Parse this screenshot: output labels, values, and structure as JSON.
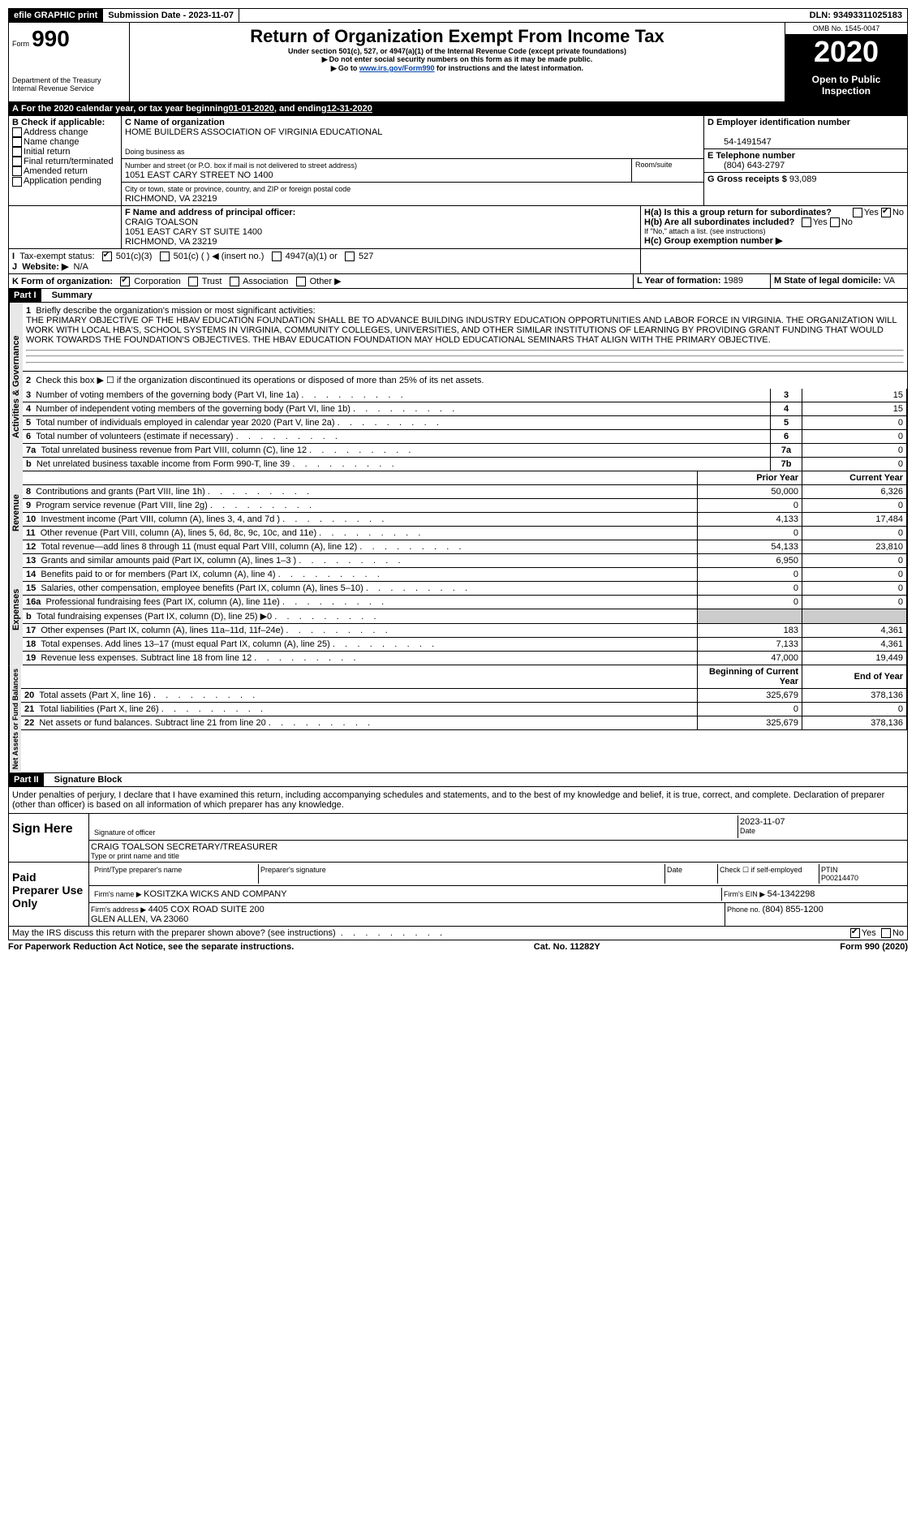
{
  "topbar": {
    "efile": "efile GRAPHIC print",
    "submission_label": "Submission Date - ",
    "submission_date": "2023-11-07",
    "dln_label": "DLN: ",
    "dln": "93493311025183"
  },
  "header": {
    "form_prefix": "Form",
    "form_no": "990",
    "title": "Return of Organization Exempt From Income Tax",
    "subtitle": "Under section 501(c), 527, or 4947(a)(1) of the Internal Revenue Code (except private foundations)",
    "warn1": "Do not enter social security numbers on this form as it may be made public.",
    "warn2_pre": "Go to ",
    "warn2_link": "www.irs.gov/Form990",
    "warn2_post": " for instructions and the latest information.",
    "dept": "Department of the Treasury\nInternal Revenue Service",
    "omb": "OMB No. 1545-0047",
    "year": "2020",
    "open": "Open to Public Inspection"
  },
  "periodA": {
    "text": "For the 2020 calendar year, or tax year beginning ",
    "begin": "01-01-2020",
    "mid": " , and ending ",
    "end": "12-31-2020"
  },
  "boxB": {
    "label": "B Check if applicable:",
    "opts": [
      "Address change",
      "Name change",
      "Initial return",
      "Final return/terminated",
      "Amended return",
      "Application pending"
    ]
  },
  "boxC": {
    "label": "C Name of organization",
    "name": "HOME BUILDERS ASSOCIATION OF VIRGINIA EDUCATIONAL",
    "dba_label": "Doing business as",
    "addr_label": "Number and street (or P.O. box if mail is not delivered to street address)",
    "addr": "1051 EAST CARY STREET NO 1400",
    "room_label": "Room/suite",
    "city_label": "City or town, state or province, country, and ZIP or foreign postal code",
    "city": "RICHMOND, VA  23219"
  },
  "boxD": {
    "label": "D Employer identification number",
    "value": "54-1491547"
  },
  "boxE": {
    "label": "E Telephone number",
    "value": "(804) 643-2797"
  },
  "boxG": {
    "label": "G Gross receipts $ ",
    "value": "93,089"
  },
  "boxF": {
    "label": "F  Name and address of principal officer:",
    "name": "CRAIG TOALSON",
    "addr1": "1051 EAST CARY ST SUITE 1400",
    "addr2": "RICHMOND, VA  23219"
  },
  "boxH": {
    "a_label": "H(a)  Is this a group return for subordinates?",
    "b_label": "H(b)  Are all subordinates included?",
    "b_note": "If \"No,\" attach a list. (see instructions)",
    "c_label": "H(c)  Group exemption number ▶",
    "yes": "Yes",
    "no": "No"
  },
  "boxI": {
    "label": "Tax-exempt status:",
    "opts": [
      "501(c)(3)",
      "501(c) (  ) ◀ (insert no.)",
      "4947(a)(1) or",
      "527"
    ]
  },
  "boxJ": {
    "label": "Website: ▶",
    "value": "N/A"
  },
  "boxK": {
    "label": "K Form of organization:",
    "opts": [
      "Corporation",
      "Trust",
      "Association",
      "Other ▶"
    ]
  },
  "boxL": {
    "label": "L Year of formation: ",
    "value": "1989"
  },
  "boxM": {
    "label": "M State of legal domicile: ",
    "value": "VA"
  },
  "part1": {
    "label": "Part I",
    "title": "Summary",
    "sideA": "Activities & Governance",
    "sideR": "Revenue",
    "sideE": "Expenses",
    "sideN": "Net Assets or Fund Balances",
    "l1_label": "Briefly describe the organization's mission or most significant activities:",
    "l1_text": "THE PRIMARY OBJECTIVE OF THE HBAV EDUCATION FOUNDATION SHALL BE TO ADVANCE BUILDING INDUSTRY EDUCATION OPPORTUNITIES AND LABOR FORCE IN VIRGINIA. THE ORGANIZATION WILL WORK WITH LOCAL HBA'S, SCHOOL SYSTEMS IN VIRGINIA, COMMUNITY COLLEGES, UNIVERSITIES, AND OTHER SIMILAR INSTITUTIONS OF LEARNING BY PROVIDING GRANT FUNDING THAT WOULD WORK TOWARDS THE FOUNDATION'S OBJECTIVES. THE HBAV EDUCATION FOUNDATION MAY HOLD EDUCATIONAL SEMINARS THAT ALIGN WITH THE PRIMARY OBJECTIVE.",
    "l2": "Check this box ▶ ☐ if the organization discontinued its operations or disposed of more than 25% of its net assets.",
    "gov_rows": [
      {
        "n": "3",
        "t": "Number of voting members of the governing body (Part VI, line 1a)",
        "c": "3",
        "v": "15"
      },
      {
        "n": "4",
        "t": "Number of independent voting members of the governing body (Part VI, line 1b)",
        "c": "4",
        "v": "15"
      },
      {
        "n": "5",
        "t": "Total number of individuals employed in calendar year 2020 (Part V, line 2a)",
        "c": "5",
        "v": "0"
      },
      {
        "n": "6",
        "t": "Total number of volunteers (estimate if necessary)",
        "c": "6",
        "v": "0"
      },
      {
        "n": "7a",
        "t": "Total unrelated business revenue from Part VIII, column (C), line 12",
        "c": "7a",
        "v": "0"
      },
      {
        "n": "b",
        "t": "Net unrelated business taxable income from Form 990-T, line 39",
        "c": "7b",
        "v": "0"
      }
    ],
    "prior_hdr": "Prior Year",
    "curr_hdr": "Current Year",
    "rev_rows": [
      {
        "n": "8",
        "t": "Contributions and grants (Part VIII, line 1h)",
        "p": "50,000",
        "c": "6,326"
      },
      {
        "n": "9",
        "t": "Program service revenue (Part VIII, line 2g)",
        "p": "0",
        "c": "0"
      },
      {
        "n": "10",
        "t": "Investment income (Part VIII, column (A), lines 3, 4, and 7d )",
        "p": "4,133",
        "c": "17,484"
      },
      {
        "n": "11",
        "t": "Other revenue (Part VIII, column (A), lines 5, 6d, 8c, 9c, 10c, and 11e)",
        "p": "0",
        "c": "0"
      },
      {
        "n": "12",
        "t": "Total revenue—add lines 8 through 11 (must equal Part VIII, column (A), line 12)",
        "p": "54,133",
        "c": "23,810"
      }
    ],
    "exp_rows": [
      {
        "n": "13",
        "t": "Grants and similar amounts paid (Part IX, column (A), lines 1–3 )",
        "p": "6,950",
        "c": "0"
      },
      {
        "n": "14",
        "t": "Benefits paid to or for members (Part IX, column (A), line 4)",
        "p": "0",
        "c": "0"
      },
      {
        "n": "15",
        "t": "Salaries, other compensation, employee benefits (Part IX, column (A), lines 5–10)",
        "p": "0",
        "c": "0"
      },
      {
        "n": "16a",
        "t": "Professional fundraising fees (Part IX, column (A), line 11e)",
        "p": "0",
        "c": "0"
      },
      {
        "n": "b",
        "t": "Total fundraising expenses (Part IX, column (D), line 25) ▶0",
        "p": "shade",
        "c": "shade"
      },
      {
        "n": "17",
        "t": "Other expenses (Part IX, column (A), lines 11a–11d, 11f–24e)",
        "p": "183",
        "c": "4,361"
      },
      {
        "n": "18",
        "t": "Total expenses. Add lines 13–17 (must equal Part IX, column (A), line 25)",
        "p": "7,133",
        "c": "4,361"
      },
      {
        "n": "19",
        "t": "Revenue less expenses. Subtract line 18 from line 12",
        "p": "47,000",
        "c": "19,449"
      }
    ],
    "beg_hdr": "Beginning of Current Year",
    "end_hdr": "End of Year",
    "net_rows": [
      {
        "n": "20",
        "t": "Total assets (Part X, line 16)",
        "p": "325,679",
        "c": "378,136"
      },
      {
        "n": "21",
        "t": "Total liabilities (Part X, line 26)",
        "p": "0",
        "c": "0"
      },
      {
        "n": "22",
        "t": "Net assets or fund balances. Subtract line 21 from line 20",
        "p": "325,679",
        "c": "378,136"
      }
    ]
  },
  "part2": {
    "label": "Part II",
    "title": "Signature Block",
    "decl": "Under penalties of perjury, I declare that I have examined this return, including accompanying schedules and statements, and to the best of my knowledge and belief, it is true, correct, and complete. Declaration of preparer (other than officer) is based on all information of which preparer has any knowledge.",
    "sign_here": "Sign Here",
    "sig_officer": "Signature of officer",
    "sig_date": "2023-11-07",
    "date_lbl": "Date",
    "officer_name": "CRAIG TOALSON  SECRETARY/TREASURER",
    "type_name": "Type or print name and title",
    "paid_prep": "Paid Preparer Use Only",
    "prep_name_lbl": "Print/Type preparer's name",
    "prep_sig_lbl": "Preparer's signature",
    "check_self": "Check ☐ if self-employed",
    "ptin_lbl": "PTIN",
    "ptin": "P00214470",
    "firm_name_lbl": "Firm's name    ▶ ",
    "firm_name": "KOSITZKA WICKS AND COMPANY",
    "firm_ein_lbl": "Firm's EIN ▶ ",
    "firm_ein": "54-1342298",
    "firm_addr_lbl": "Firm's address ▶ ",
    "firm_addr": "4405 COX ROAD SUITE 200\nGLEN ALLEN, VA  23060",
    "phone_lbl": "Phone no. ",
    "phone": "(804) 855-1200",
    "discuss": "May the IRS discuss this return with the preparer shown above? (see instructions)",
    "yes": "Yes",
    "no": "No"
  },
  "footer": {
    "left": "For Paperwork Reduction Act Notice, see the separate instructions.",
    "mid": "Cat. No. 11282Y",
    "right": "Form 990 (2020)"
  },
  "colors": {
    "black": "#000000",
    "white": "#ffffff",
    "shade": "#cccccc",
    "sidebg": "#e8e8e8",
    "link": "#0645ad"
  }
}
